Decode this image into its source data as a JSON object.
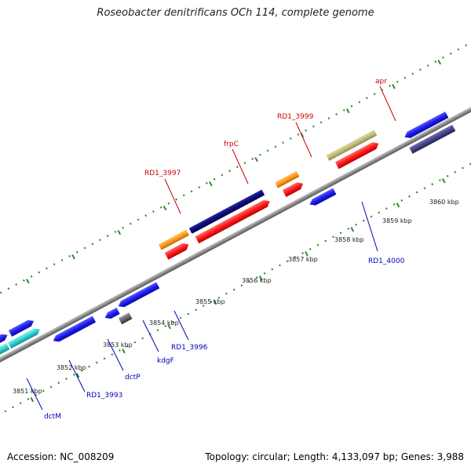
{
  "title": "Roseobacter denitrificans OCh 114, complete genome",
  "footer": {
    "accession": "Accession: NC_008209",
    "info": "Topology: circular; Length: 4,133,097 bp; Genes: 3,988"
  },
  "colors": {
    "backbone": "#8a8a8a",
    "tick_dots": "#2e8b2e",
    "red_feature": "#ff1a1a",
    "blue_feature": "#1c1cf0",
    "navy_feature": "#0a0a78",
    "orange_feature": "#ff9a1a",
    "khaki_feature": "#c2bd78",
    "cyan_feature": "#2fd0d0",
    "gray_feature": "#666666",
    "slate_feature": "#444488",
    "red_label": "#cc0000",
    "blue_label": "#0000bb"
  },
  "ticks": [
    "3851 kbp",
    "3852 kbp",
    "3853 kbp",
    "3854 kbp",
    "3855 kbp",
    "3856 kbp",
    "3857 kbp",
    "3858 kbp",
    "3859 kbp",
    "3860 kbp"
  ],
  "genes_top": [
    {
      "label": "RD1_3997"
    },
    {
      "label": "frpC"
    },
    {
      "label": "RD1_3999"
    },
    {
      "label": "apr"
    }
  ],
  "genes_bottom": [
    {
      "label": "dctM"
    },
    {
      "label": "RD1_3993"
    },
    {
      "label": "dctP"
    },
    {
      "label": "kdgF"
    },
    {
      "label": "RD1_3996"
    },
    {
      "label": "RD1_4000"
    }
  ]
}
